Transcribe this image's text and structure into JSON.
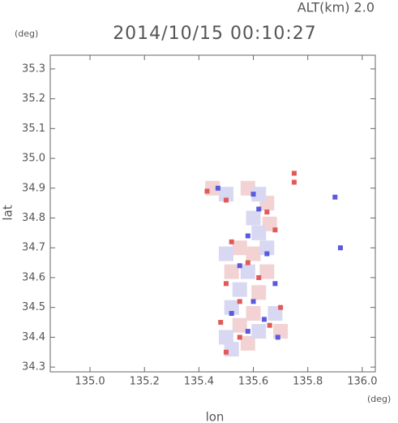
{
  "chart_data": {
    "type": "scatter",
    "title": "2014/10/15 00:10:27",
    "subtitle": "ALT(km) 2.0",
    "y_unit": "(deg)",
    "x_unit": "(deg)",
    "x_label": "lon",
    "y_label": "lat",
    "xlim": [
      134.854,
      136.048
    ],
    "ylim": [
      34.284,
      35.346
    ],
    "xticks": [
      {
        "value": 135,
        "label": "135.0"
      },
      135.2,
      135.4,
      135.6,
      135.8,
      {
        "value": 136,
        "label": "136.0"
      }
    ],
    "yticks": [
      34.3,
      34.4,
      34.5,
      34.6,
      34.7,
      34.8,
      34.9,
      {
        "value": 35,
        "label": "35.0"
      },
      35.1,
      35.2,
      35.3
    ],
    "series": [
      {
        "color": "#f2d2d2",
        "x": [
          135.45,
          135.58,
          135.65,
          135.66,
          135.55,
          135.6,
          135.52,
          135.65,
          135.62,
          135.6,
          135.55,
          135.7,
          135.58
        ],
        "y": [
          34.9,
          34.9,
          34.85,
          34.78,
          34.7,
          34.68,
          34.62,
          34.62,
          34.55,
          34.48,
          34.44,
          34.42,
          34.38
        ]
      },
      {
        "color": "#d8d8f2",
        "x": [
          135.5,
          135.62,
          135.6,
          135.62,
          135.5,
          135.65,
          135.58,
          135.55,
          135.52,
          135.68,
          135.62,
          135.5,
          135.52
        ],
        "y": [
          34.88,
          34.88,
          34.8,
          34.75,
          34.68,
          34.7,
          34.62,
          34.56,
          34.5,
          34.48,
          34.42,
          34.4,
          34.36
        ]
      },
      {
        "color": "#e05a5a",
        "x": [
          135.43,
          135.5,
          135.65,
          135.68,
          135.75,
          135.52,
          135.58,
          135.5,
          135.62,
          135.55,
          135.7,
          135.48,
          135.66,
          135.55,
          135.5,
          135.75
        ],
        "y": [
          34.89,
          34.86,
          34.82,
          34.76,
          34.92,
          34.72,
          34.65,
          34.58,
          34.6,
          34.52,
          34.5,
          34.45,
          34.44,
          34.4,
          34.35,
          34.95
        ]
      },
      {
        "color": "#5a5ae0",
        "x": [
          135.6,
          135.62,
          135.9,
          135.92,
          135.58,
          135.65,
          135.55,
          135.68,
          135.6,
          135.52,
          135.64,
          135.58,
          135.69,
          135.47
        ],
        "y": [
          34.88,
          34.83,
          34.87,
          34.7,
          34.74,
          34.68,
          34.64,
          34.58,
          34.52,
          34.48,
          34.46,
          34.42,
          34.4,
          34.9
        ]
      }
    ]
  }
}
